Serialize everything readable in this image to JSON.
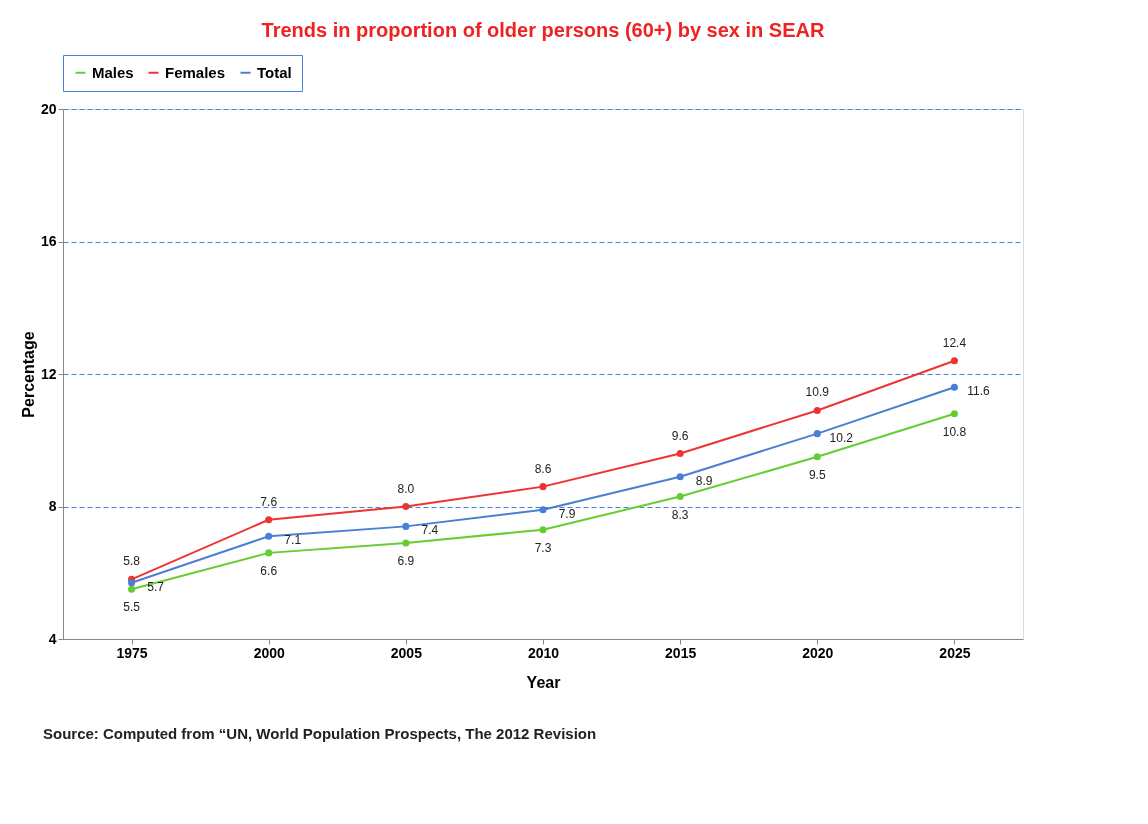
{
  "chart_data": {
    "type": "line",
    "title": "Trends in proportion of older persons (60+) by sex in SEAR",
    "xlabel": "Year",
    "ylabel": "Percentage",
    "categories": [
      "1975",
      "2000",
      "2005",
      "2010",
      "2015",
      "2020",
      "2025"
    ],
    "series": [
      {
        "name": "Males",
        "color": "#66cc33",
        "values": [
          5.5,
          6.6,
          6.9,
          7.3,
          8.3,
          9.5,
          10.8
        ],
        "value_labels": [
          "5.5",
          "6.6",
          "6.9",
          "7.3",
          "8.3",
          "9.5",
          "10.8"
        ]
      },
      {
        "name": "Females",
        "color": "#ee3333",
        "values": [
          5.8,
          7.6,
          8.0,
          8.6,
          9.6,
          10.9,
          12.4
        ],
        "value_labels": [
          "5.8",
          "7.6",
          "8.0",
          "8.6",
          "9.6",
          "10.9",
          "12.4"
        ]
      },
      {
        "name": "Total",
        "color": "#4a7fd4",
        "values": [
          5.7,
          7.1,
          7.4,
          7.9,
          8.9,
          10.2,
          11.6
        ],
        "value_labels": [
          "5.7",
          "7.1",
          "7.4",
          "7.9",
          "8.9",
          "10.2",
          "11.6"
        ]
      }
    ],
    "ylim": [
      4,
      20
    ],
    "yticks": [
      4,
      8,
      12,
      16,
      20
    ],
    "grid": "y",
    "legend": "top",
    "marker": "circle",
    "line_style": "solid",
    "annotations": [
      "Source: Computed from “UN, World Population Prospects, The 2012 Revision"
    ]
  }
}
